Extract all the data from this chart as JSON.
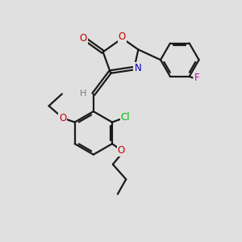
{
  "background_color": "#e0e0e0",
  "bond_color": "#1a1a1a",
  "bond_width": 1.6,
  "colors": {
    "O": "#cc0000",
    "N": "#0000cc",
    "Cl": "#00bb00",
    "F": "#bb00bb",
    "H": "#777777",
    "C": "#1a1a1a"
  }
}
